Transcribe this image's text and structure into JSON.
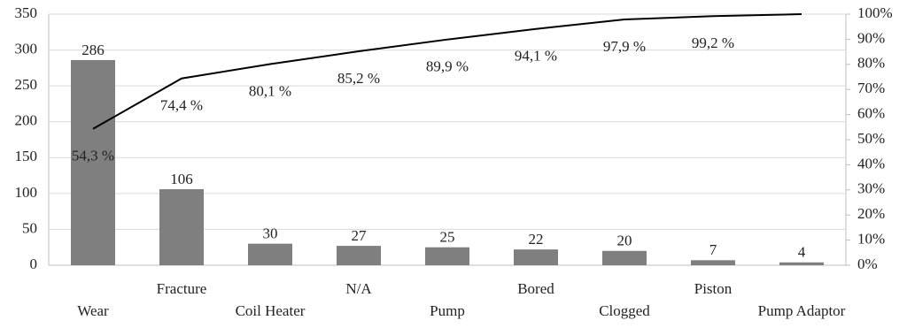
{
  "chart_data": {
    "type": "bar",
    "categories": [
      "Wear",
      "Fracture",
      "Coil Heater",
      "N/A",
      "Pump",
      "Bored",
      "Clogged",
      "Piston",
      "Pump Adaptor"
    ],
    "series": [
      {
        "type": "bar",
        "color": "#7f7f7f",
        "values": [
          286,
          106,
          30,
          27,
          25,
          22,
          20,
          7,
          4
        ]
      },
      {
        "type": "line",
        "axis": "y2",
        "color": "#000000",
        "values": [
          54.3,
          74.4,
          80.1,
          85.2,
          89.9,
          94.1,
          97.9,
          99.2,
          100
        ],
        "value_labels": [
          "54,3 %",
          "74,4 %",
          "80,1 %",
          "85,2 %",
          "89,9 %",
          "94,1 %",
          "97,9 %",
          "99,2 %",
          null
        ]
      }
    ],
    "ylim": [
      0,
      350
    ],
    "yticks": [
      0,
      50,
      100,
      150,
      200,
      250,
      300,
      350
    ],
    "y2lim": [
      0,
      100
    ],
    "y2ticks": [
      {
        "value": 0,
        "label": "0%"
      },
      {
        "value": 10,
        "label": "10%"
      },
      {
        "value": 20,
        "label": "20%"
      },
      {
        "value": 30,
        "label": "30%"
      },
      {
        "value": 40,
        "label": "40%"
      },
      {
        "value": 50,
        "label": "50%"
      },
      {
        "value": 60,
        "label": "60%"
      },
      {
        "value": 70,
        "label": "70%"
      },
      {
        "value": 80,
        "label": "80%"
      },
      {
        "value": 90,
        "label": "90%"
      },
      {
        "value": 100,
        "label": "100%"
      }
    ],
    "grid": true
  }
}
